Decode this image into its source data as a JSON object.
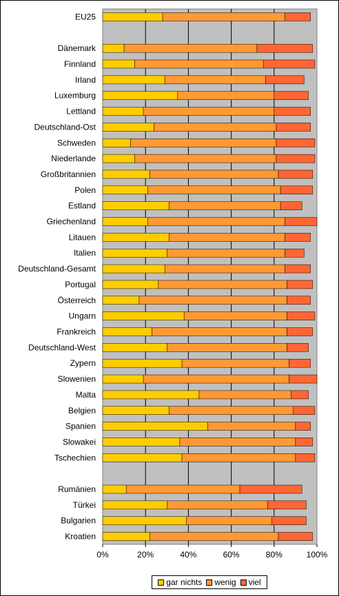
{
  "chart_data": {
    "type": "bar",
    "orientation": "horizontal",
    "stacked": "percent",
    "x_ticks": [
      "0%",
      "20%",
      "40%",
      "60%",
      "80%",
      "100%"
    ],
    "xlim": [
      0,
      100
    ],
    "grid": "vertical",
    "legend_position": "bottom",
    "categories": [
      "EU25",
      "",
      "Dänemark",
      "Finnland",
      "Irland",
      "Luxemburg",
      "Lettland",
      "Deutschland-Ost",
      "Schweden",
      "Niederlande",
      "Großbritannien",
      "Polen",
      "Estland",
      "Griechenland",
      "Litauen",
      "Italien",
      "Deutschland-Gesamt",
      "Portugal",
      "Österreich",
      "Ungarn",
      "Frankreich",
      "Deutschland-West",
      "Zypern",
      "Slowenien",
      "Malta",
      "Belgien",
      "Spanien",
      "Slowakei",
      "Tschechien",
      "",
      "Rumänien",
      "Türkei",
      "Bulgarien",
      "Kroatien"
    ],
    "series": [
      {
        "name": "gar nichts",
        "color": "#FFCC00",
        "values": [
          28,
          null,
          10,
          15,
          29,
          35,
          19,
          24,
          13,
          15,
          22,
          21,
          31,
          21,
          31,
          30,
          29,
          26,
          17,
          38,
          23,
          30,
          37,
          19,
          45,
          31,
          49,
          36,
          37,
          null,
          11,
          30,
          39,
          22
        ]
      },
      {
        "name": "wenig",
        "color": "#FF9933",
        "values": [
          57,
          null,
          62,
          60,
          47,
          45,
          61,
          57,
          68,
          66,
          60,
          62,
          52,
          64,
          54,
          55,
          56,
          60,
          69,
          48,
          63,
          56,
          50,
          68,
          43,
          58,
          41,
          54,
          53,
          null,
          53,
          47,
          40,
          60
        ]
      },
      {
        "name": "viel",
        "color": "#FF6633",
        "values": [
          12,
          null,
          26,
          24,
          18,
          16,
          17,
          16,
          18,
          18,
          16,
          15,
          10,
          15,
          12,
          9,
          12,
          12,
          11,
          13,
          12,
          10,
          10,
          13,
          8,
          10,
          7,
          8,
          9,
          null,
          29,
          18,
          16,
          16
        ]
      }
    ]
  }
}
